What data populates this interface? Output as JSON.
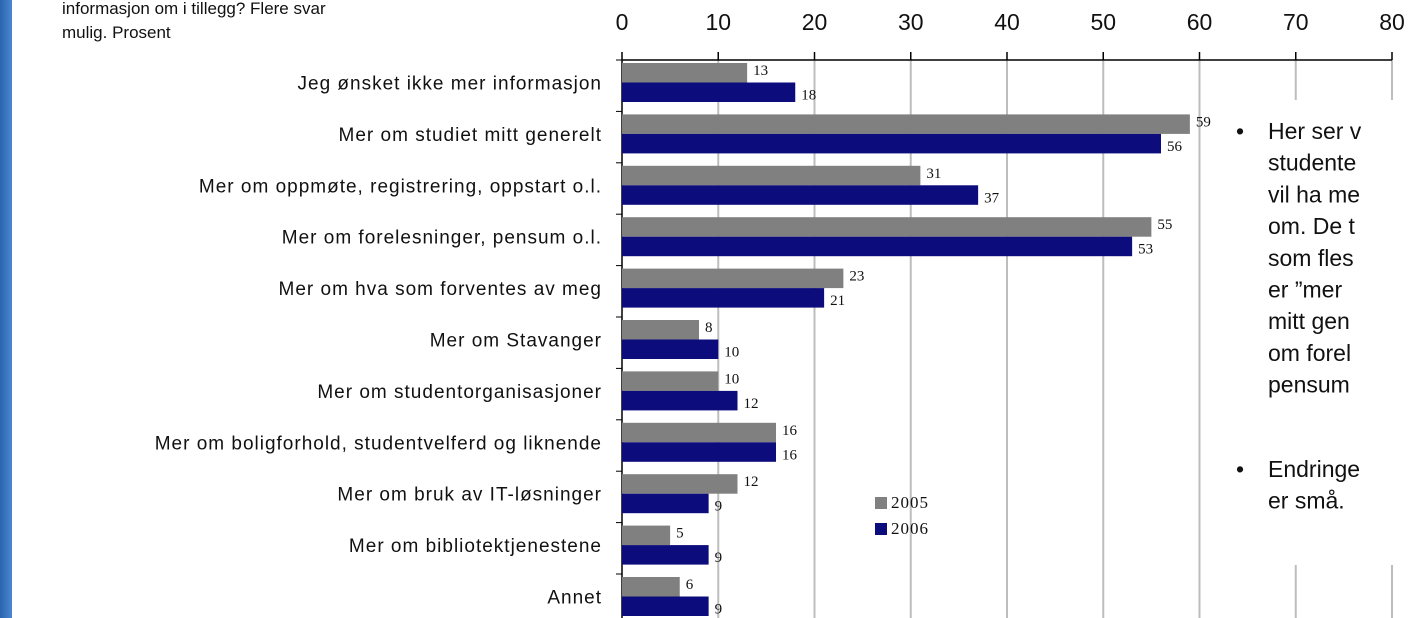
{
  "chart_data": {
    "type": "bar",
    "orientation": "horizontal",
    "title_lines": [
      "informasjon om i tillegg? Flere svar",
      "mulig. Prosent"
    ],
    "categories": [
      "Jeg ønsket ikke mer informasjon",
      "Mer om studiet mitt generelt",
      "Mer om oppmøte, registrering, oppstart o.l.",
      "Mer om forelesninger, pensum o.l.",
      "Mer om hva som forventes av meg",
      "Mer om Stavanger",
      "Mer om studentorganisasjoner",
      "Mer om boligforhold, studentvelferd og liknende",
      "Mer om bruk av IT-løsninger",
      "Mer om bibliotektjenestene",
      "Annet"
    ],
    "series": [
      {
        "name": "2005",
        "color": "#808080",
        "values": [
          13,
          59,
          31,
          55,
          23,
          8,
          10,
          16,
          12,
          5,
          6
        ]
      },
      {
        "name": "2006",
        "color": "#0c0c7c",
        "values": [
          18,
          56,
          37,
          53,
          21,
          10,
          12,
          16,
          9,
          9,
          9
        ]
      }
    ],
    "xlim": [
      0,
      80
    ],
    "xticks": [
      0,
      10,
      20,
      30,
      40,
      50,
      60,
      70,
      80
    ],
    "grid": true
  },
  "bullets": [
    [
      "Her ser v",
      "studente",
      "vil ha me",
      "om. De t",
      "som fles",
      "er ”mer",
      "mitt gen",
      "om forel",
      "pensum"
    ],
    [
      "Endringe",
      "er små."
    ]
  ]
}
